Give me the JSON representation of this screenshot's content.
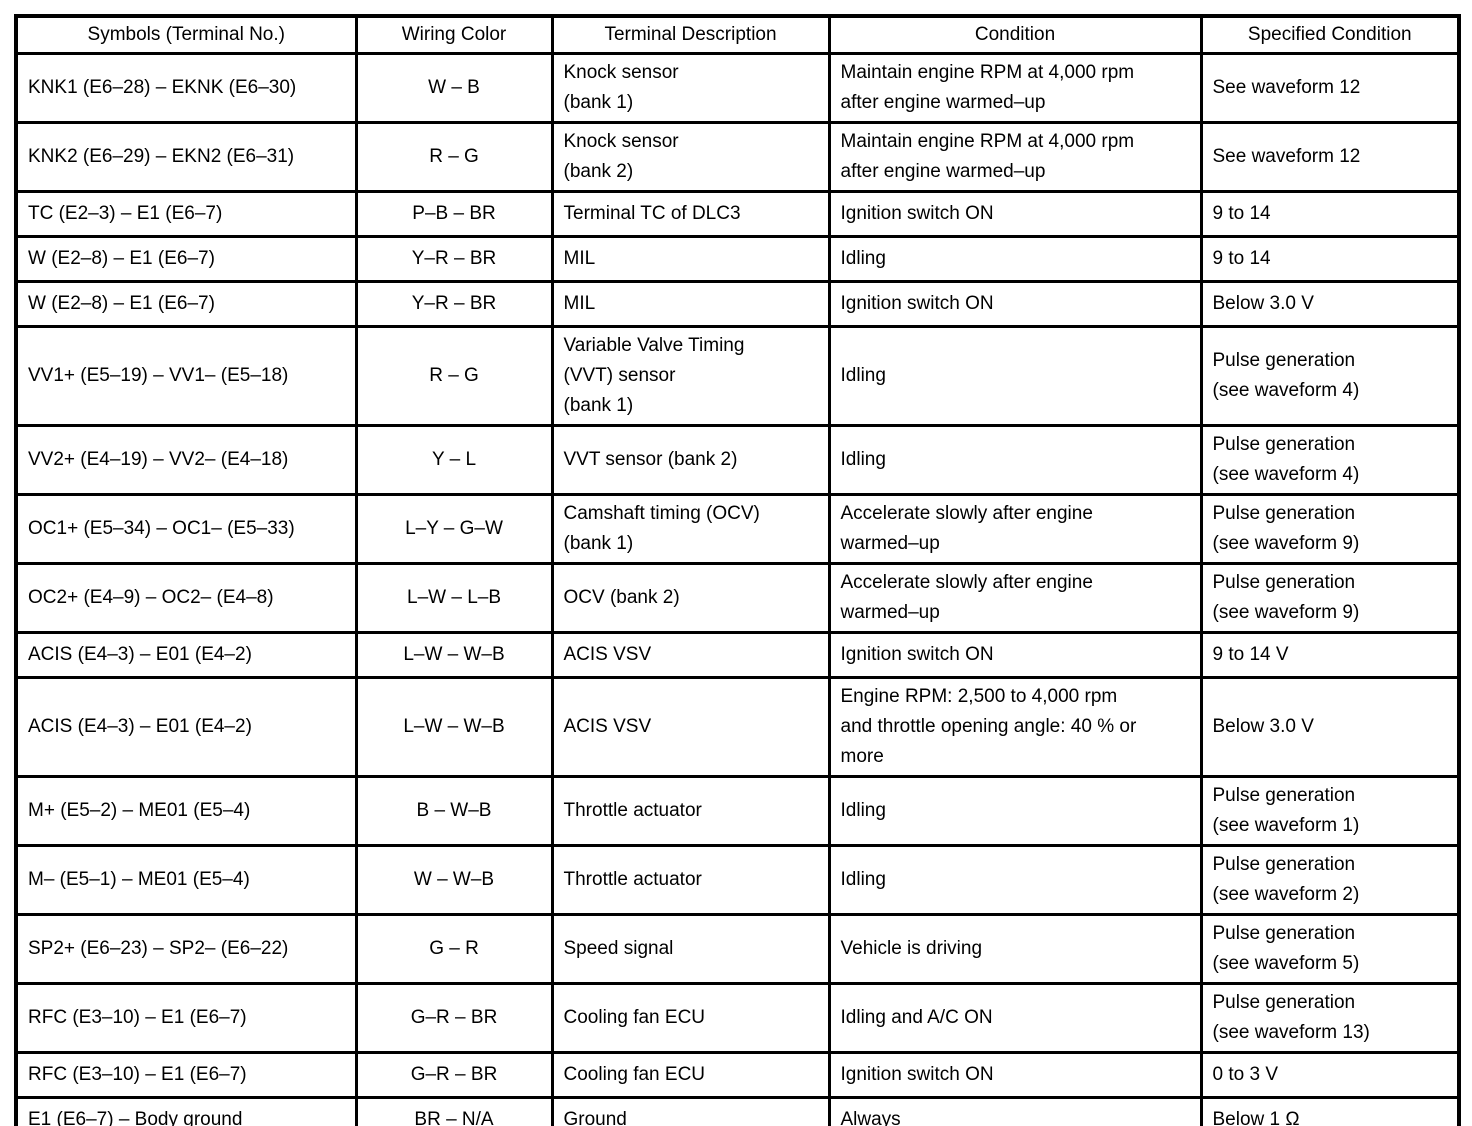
{
  "colors": {
    "border": "#000000",
    "background": "#ffffff",
    "text": "#000000"
  },
  "table": {
    "columns": [
      "Symbols (Terminal No.)",
      "Wiring Color",
      "Terminal Description",
      "Condition",
      "Specified Condition"
    ],
    "rows": [
      {
        "symbols": "KNK1 (E6–28) – EKNK (E6–30)",
        "wiring_color": "W – B",
        "terminal_description": "Knock sensor\n(bank 1)",
        "condition": "Maintain engine RPM at 4,000 rpm\nafter engine warmed–up",
        "specified_condition": "See waveform 12"
      },
      {
        "symbols": "KNK2 (E6–29) – EKN2 (E6–31)",
        "wiring_color": "R – G",
        "terminal_description": "Knock sensor\n(bank 2)",
        "condition": "Maintain engine RPM at 4,000 rpm\nafter engine warmed–up",
        "specified_condition": "See waveform 12"
      },
      {
        "symbols": "TC (E2–3) – E1 (E6–7)",
        "wiring_color": "P–B – BR",
        "terminal_description": "Terminal TC of DLC3",
        "condition": "Ignition switch ON",
        "specified_condition": "9 to 14"
      },
      {
        "symbols": "W (E2–8) – E1 (E6–7)",
        "wiring_color": "Y–R – BR",
        "terminal_description": "MIL",
        "condition": "Idling",
        "specified_condition": "9 to 14"
      },
      {
        "symbols": "W (E2–8) – E1 (E6–7)",
        "wiring_color": "Y–R – BR",
        "terminal_description": "MIL",
        "condition": "Ignition switch ON",
        "specified_condition": "Below 3.0 V"
      },
      {
        "symbols": "VV1+ (E5–19) – VV1– (E5–18)",
        "wiring_color": "R – G",
        "terminal_description": "Variable Valve Timing\n(VVT) sensor\n(bank 1)",
        "condition": "Idling",
        "specified_condition": "Pulse generation\n(see waveform 4)"
      },
      {
        "symbols": "VV2+ (E4–19) – VV2– (E4–18)",
        "wiring_color": "Y – L",
        "terminal_description": "VVT sensor (bank 2)",
        "condition": "Idling",
        "specified_condition": "Pulse generation\n(see waveform 4)"
      },
      {
        "symbols": "OC1+ (E5–34) – OC1– (E5–33)",
        "wiring_color": "L–Y – G–W",
        "terminal_description": "Camshaft timing (OCV)\n(bank 1)",
        "condition": "Accelerate slowly after engine\nwarmed–up",
        "specified_condition": "Pulse generation\n(see waveform 9)"
      },
      {
        "symbols": "OC2+ (E4–9) – OC2– (E4–8)",
        "wiring_color": "L–W – L–B",
        "terminal_description": "OCV (bank 2)",
        "condition": "Accelerate slowly after engine\nwarmed–up",
        "specified_condition": "Pulse generation\n(see waveform 9)"
      },
      {
        "symbols": "ACIS (E4–3) – E01 (E4–2)",
        "wiring_color": "L–W – W–B",
        "terminal_description": "ACIS VSV",
        "condition": "Ignition switch ON",
        "specified_condition": "9 to 14 V"
      },
      {
        "symbols": "ACIS (E4–3) – E01 (E4–2)",
        "wiring_color": "L–W – W–B",
        "terminal_description": "ACIS VSV",
        "condition": "Engine RPM: 2,500 to 4,000 rpm\nand throttle opening angle: 40 % or\nmore",
        "specified_condition": "Below 3.0 V"
      },
      {
        "symbols": "M+ (E5–2) – ME01 (E5–4)",
        "wiring_color": "B – W–B",
        "terminal_description": "Throttle actuator",
        "condition": "Idling",
        "specified_condition": "Pulse generation\n(see waveform 1)"
      },
      {
        "symbols": "M– (E5–1) – ME01 (E5–4)",
        "wiring_color": "W – W–B",
        "terminal_description": "Throttle actuator",
        "condition": "Idling",
        "specified_condition": "Pulse generation\n(see waveform 2)"
      },
      {
        "symbols": "SP2+ (E6–23) – SP2– (E6–22)",
        "wiring_color": "G – R",
        "terminal_description": "Speed signal",
        "condition": "Vehicle is driving",
        "specified_condition": "Pulse generation\n(see waveform 5)"
      },
      {
        "symbols": "RFC (E3–10) – E1 (E6–7)",
        "wiring_color": "G–R – BR",
        "terminal_description": "Cooling fan ECU",
        "condition": "Idling and A/C ON",
        "specified_condition": "Pulse generation\n(see waveform 13)"
      },
      {
        "symbols": "RFC (E3–10) – E1 (E6–7)",
        "wiring_color": "G–R – BR",
        "terminal_description": "Cooling fan ECU",
        "condition": "Ignition switch ON",
        "specified_condition": "0 to 3 V"
      },
      {
        "symbols": "E1 (E6–7) – Body ground",
        "wiring_color": "BR – N/A",
        "terminal_description": "Ground",
        "condition": "Always",
        "specified_condition": "Below 1 Ω"
      }
    ]
  }
}
